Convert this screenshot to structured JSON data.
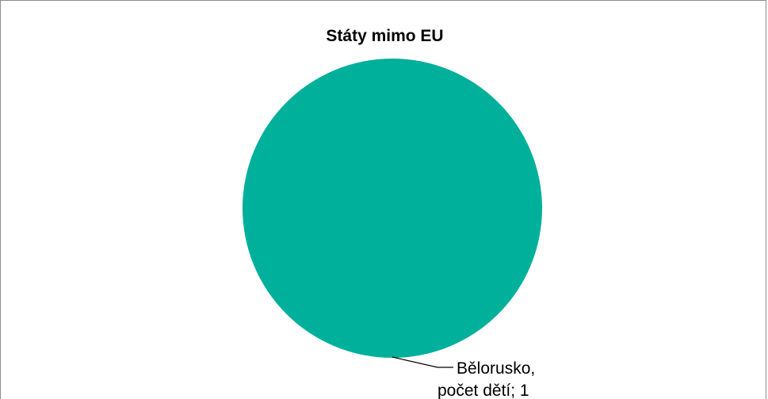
{
  "chart_data": {
    "type": "pie",
    "title": "Státy mimo EU",
    "slices": [
      {
        "label": "Bělorusko",
        "value": 1,
        "label_line1": "Bělorusko,",
        "label_line2": "počet dětí; 1"
      }
    ],
    "colors": [
      "#00b09b"
    ],
    "legend": "none"
  }
}
